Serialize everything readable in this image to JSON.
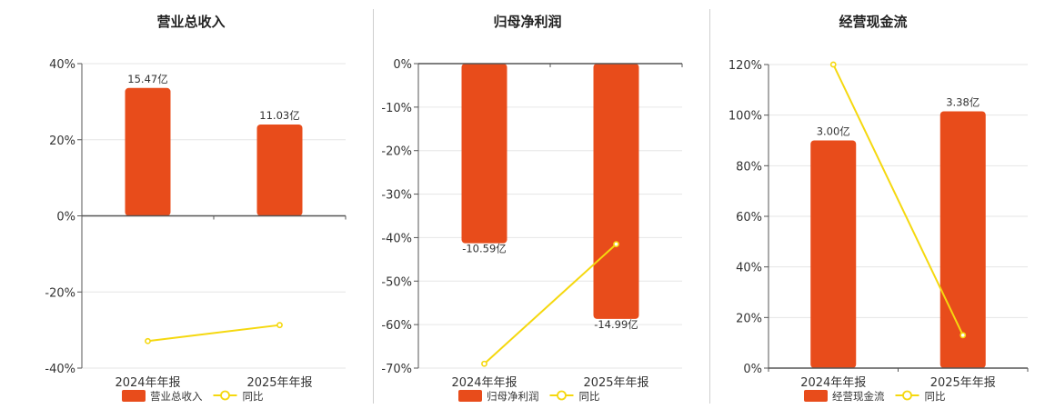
{
  "colors": {
    "bar": "#e84c1b",
    "line": "#f5d80f",
    "grid": "#e6e6e6",
    "axis": "#555555"
  },
  "chart_data": [
    {
      "type": "bar",
      "title": "营业总收入",
      "categories": [
        "2024年年报",
        "2025年年报"
      ],
      "series": [
        {
          "name": "营业总收入",
          "type": "bar",
          "values": [
            15.47,
            11.03
          ],
          "value_unit": "亿",
          "labels": [
            "15.47亿",
            "11.03亿"
          ],
          "display_percent": [
            33.6,
            24.0
          ]
        },
        {
          "name": "同比",
          "type": "line",
          "values": [
            -32.9,
            -28.7
          ]
        }
      ],
      "ylim": [
        -40,
        40
      ],
      "yticks": [
        "40%",
        "20%",
        "0%",
        "-20%",
        "-40%"
      ],
      "grid": true,
      "legend": "bottom"
    },
    {
      "type": "bar",
      "title": "归母净利润",
      "categories": [
        "2024年年报",
        "2025年年报"
      ],
      "series": [
        {
          "name": "归母净利润",
          "type": "bar",
          "values": [
            -10.59,
            -14.99
          ],
          "value_unit": "亿",
          "labels": [
            "-10.59亿",
            "-14.99亿"
          ],
          "display_percent": [
            -41.3,
            -58.7
          ]
        },
        {
          "name": "同比",
          "type": "line",
          "values": [
            -69.0,
            -41.5
          ]
        }
      ],
      "ylim": [
        -70,
        0
      ],
      "yticks": [
        "0%",
        "-10%",
        "-20%",
        "-30%",
        "-40%",
        "-50%",
        "-60%",
        "-70%"
      ],
      "grid": true,
      "legend": "bottom"
    },
    {
      "type": "bar",
      "title": "经营现金流",
      "categories": [
        "2024年年报",
        "2025年年报"
      ],
      "series": [
        {
          "name": "经营现金流",
          "type": "bar",
          "values": [
            3.0,
            3.38
          ],
          "value_unit": "亿",
          "labels": [
            "3.00亿",
            "3.38亿"
          ],
          "display_percent": [
            90.0,
            101.5
          ]
        },
        {
          "name": "同比",
          "type": "line",
          "values": [
            120.0,
            13.0
          ]
        }
      ],
      "ylim": [
        0,
        120
      ],
      "yticks": [
        "120%",
        "100%",
        "80%",
        "60%",
        "40%",
        "20%",
        "0%"
      ],
      "grid": true,
      "legend": "bottom"
    }
  ]
}
